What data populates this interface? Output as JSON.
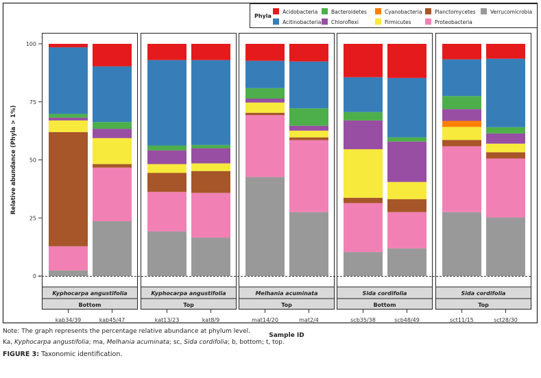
{
  "chart_data": {
    "type": "bar",
    "stacked": true,
    "title": "",
    "xlabel": "Sample ID",
    "ylabel": "Relative abundance (Phyla > 1%)",
    "ylim": [
      0,
      100
    ],
    "yticks": [
      0,
      25,
      50,
      75,
      100
    ],
    "grid": false,
    "legend": {
      "title": "Phyla",
      "placement": "top-right",
      "entries": [
        {
          "name": "Acidobacteria",
          "color": "#e41a1c"
        },
        {
          "name": "Acitinobacteria",
          "color": "#377eb8"
        },
        {
          "name": "Bacteroidetes",
          "color": "#4daf4a"
        },
        {
          "name": "Chloroflexi",
          "color": "#984ea3"
        },
        {
          "name": "Cyanobacteria",
          "color": "#ff7f00"
        },
        {
          "name": "Firmicutes",
          "color": "#f7ea3c"
        },
        {
          "name": "Planctomycetes",
          "color": "#a65628"
        },
        {
          "name": "Proteobacteria",
          "color": "#f181b5"
        },
        {
          "name": "Verrucomicrobia",
          "color": "#999999"
        }
      ]
    },
    "stack_order_bottom_to_top": [
      "Verrucomicrobia",
      "Proteobacteria",
      "Planctomycetes",
      "Firmicutes",
      "Cyanobacteria",
      "Chloroflexi",
      "Bacteroidetes",
      "Acitinobacteria",
      "Acidobacteria"
    ],
    "panels": [
      {
        "species": "Kyphocarpa angustifolia",
        "position": "Bottom",
        "samples": [
          "kab34/39",
          "kab45/47"
        ]
      },
      {
        "species": "Kyphocarpa angustifolia",
        "position": "Top",
        "samples": [
          "kat13/23",
          "kat8/9"
        ]
      },
      {
        "species": "Melhania acuminata",
        "position": "Top",
        "samples": [
          "mat14/20",
          "mat2/4"
        ]
      },
      {
        "species": "Sida cordifolia",
        "position": "Bottom",
        "samples": [
          "scb35/38",
          "scb48/49"
        ]
      },
      {
        "species": "Sida cordifolia",
        "position": "Top",
        "samples": [
          "sct11/15",
          "sct28/30"
        ]
      }
    ],
    "categories": [
      "kab34/39",
      "kab45/47",
      "kat13/23",
      "kat8/9",
      "mat14/20",
      "mat2/4",
      "scb35/38",
      "scb48/49",
      "sct11/15",
      "sct28/30"
    ],
    "series": [
      {
        "name": "Verrucomicrobia",
        "values": [
          2.4,
          23.6,
          19.2,
          16.5,
          42.6,
          27.5,
          10.3,
          11.9,
          27.5,
          25.2
        ]
      },
      {
        "name": "Proteobacteria",
        "values": [
          10.4,
          23.1,
          17.0,
          19.3,
          26.7,
          31.0,
          21.1,
          15.6,
          28.4,
          25.4
        ]
      },
      {
        "name": "Planctomycetes",
        "values": [
          49.2,
          1.5,
          8.2,
          9.4,
          1.0,
          1.2,
          2.3,
          5.6,
          2.7,
          2.7
        ]
      },
      {
        "name": "Firmicutes",
        "values": [
          5.0,
          11.2,
          3.8,
          3.3,
          4.4,
          2.9,
          20.9,
          7.4,
          5.6,
          3.7
        ]
      },
      {
        "name": "Cyanobacteria",
        "values": [
          0,
          0,
          0,
          0,
          0,
          0,
          0,
          0,
          2.6,
          0
        ]
      },
      {
        "name": "Chloroflexi",
        "values": [
          1.2,
          4.0,
          5.9,
          6.5,
          1.7,
          2.1,
          12.4,
          17.4,
          5.1,
          4.4
        ]
      },
      {
        "name": "Bacteroidetes",
        "values": [
          1.6,
          2.9,
          2.1,
          1.4,
          4.5,
          7.5,
          3.6,
          1.8,
          5.6,
          2.7
        ]
      },
      {
        "name": "Acitinobacteria",
        "values": [
          28.7,
          24.0,
          36.8,
          36.6,
          11.8,
          20.2,
          15.0,
          25.6,
          15.8,
          29.5
        ]
      },
      {
        "name": "Acidobacteria",
        "values": [
          1.5,
          9.7,
          7.0,
          7.0,
          7.3,
          7.6,
          14.4,
          14.7,
          6.7,
          6.4
        ]
      }
    ]
  },
  "captions": {
    "note_line1": "Note: The graph represents the percentage relative abundance at phylum level.",
    "note_line2_parts": [
      {
        "text": "Ka, ",
        "italic": false
      },
      {
        "text": "Kyphocarpa angustifolia",
        "italic": true
      },
      {
        "text": "; ma, ",
        "italic": false
      },
      {
        "text": "Melhania acuminata",
        "italic": true
      },
      {
        "text": "; sc, ",
        "italic": false
      },
      {
        "text": "Sida cordifolia",
        "italic": true
      },
      {
        "text": "; b, bottom; t, top.",
        "italic": false
      }
    ],
    "figure_label": "FIGURE 3:",
    "figure_title": " Taxonomic identification."
  }
}
